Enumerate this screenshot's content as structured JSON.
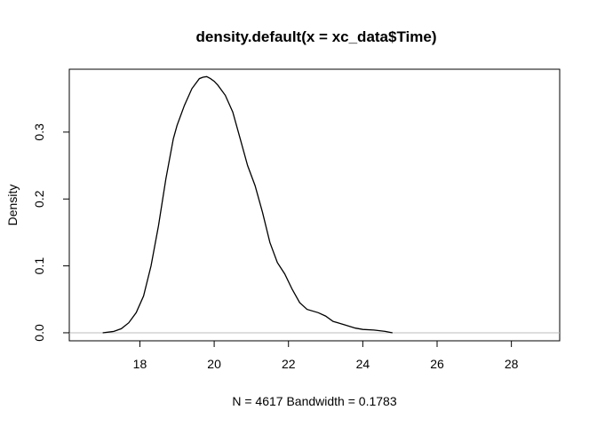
{
  "chart_data": {
    "type": "line",
    "title": "density.default(x = xc_data$Time)",
    "xlabel": "N = 4617   Bandwidth = 0.1783",
    "ylabel": "Density",
    "xlim": [
      16.1,
      29.3
    ],
    "ylim": [
      -0.012,
      0.394
    ],
    "xticks": [
      18,
      20,
      22,
      24,
      26,
      28
    ],
    "xtick_labels": [
      "18",
      "20",
      "22",
      "24",
      "26",
      "28"
    ],
    "yticks": [
      0.0,
      0.1,
      0.2,
      0.3
    ],
    "ytick_labels": [
      "0.0",
      "0.1",
      "0.2",
      "0.3"
    ],
    "baseline": 0,
    "colors": {
      "line": "#000000",
      "baseline": "#bebebe",
      "frame": "#000000"
    },
    "series": [
      {
        "x": [
          17.0,
          17.3,
          17.5,
          17.7,
          17.9,
          18.1,
          18.3,
          18.5,
          18.7,
          18.9,
          19.0,
          19.2,
          19.4,
          19.6,
          19.7,
          19.8,
          19.9,
          20.0,
          20.1,
          20.3,
          20.5,
          20.7,
          20.9,
          21.1,
          21.3,
          21.5,
          21.7,
          21.9,
          22.1,
          22.3,
          22.5,
          22.8,
          23.0,
          23.2,
          23.5,
          23.8,
          24.0,
          24.3,
          24.6,
          24.8
        ],
        "values": [
          0.0,
          0.002,
          0.006,
          0.015,
          0.03,
          0.055,
          0.1,
          0.16,
          0.23,
          0.29,
          0.31,
          0.34,
          0.365,
          0.38,
          0.382,
          0.383,
          0.38,
          0.376,
          0.37,
          0.355,
          0.33,
          0.29,
          0.25,
          0.22,
          0.18,
          0.135,
          0.105,
          0.088,
          0.065,
          0.045,
          0.035,
          0.03,
          0.025,
          0.017,
          0.012,
          0.007,
          0.005,
          0.004,
          0.002,
          0.0
        ]
      }
    ]
  }
}
